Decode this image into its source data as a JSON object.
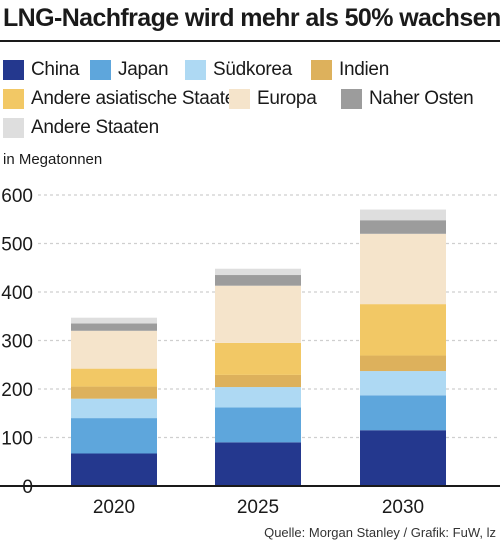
{
  "title": "LNG-Nachfrage wird mehr als 50% wachsen",
  "unit_label": "in Megatonnen",
  "source": "Quelle: Morgan Stanley / Grafik: FuW, lz",
  "chart_data": {
    "type": "bar",
    "stacked": true,
    "title": "LNG-Nachfrage wird mehr als 50% wachsen",
    "ylabel": "in Megatonnen",
    "ylim": [
      0,
      600
    ],
    "yticks": [
      0,
      100,
      200,
      300,
      400,
      500,
      600
    ],
    "grid": true,
    "legend_position": "top",
    "categories": [
      "2020",
      "2025",
      "2030"
    ],
    "series": [
      {
        "name": "China",
        "color": "#24388e",
        "values": [
          67,
          90,
          115
        ]
      },
      {
        "name": "Japan",
        "color": "#5ea6dc",
        "values": [
          73,
          72,
          72
        ]
      },
      {
        "name": "Südkorea",
        "color": "#aed9f3",
        "values": [
          40,
          42,
          50
        ]
      },
      {
        "name": "Indien",
        "color": "#ddb15c",
        "values": [
          25,
          25,
          32
        ]
      },
      {
        "name": "Andere asiatische Staaten",
        "color": "#f2c865",
        "values": [
          37,
          66,
          106
        ]
      },
      {
        "name": "Europa",
        "color": "#f5e4cb",
        "values": [
          78,
          118,
          145
        ]
      },
      {
        "name": "Naher Osten",
        "color": "#9c9c9c",
        "values": [
          15,
          22,
          28
        ]
      },
      {
        "name": "Andere Staaten",
        "color": "#dedede",
        "values": [
          12,
          13,
          22
        ]
      }
    ]
  }
}
